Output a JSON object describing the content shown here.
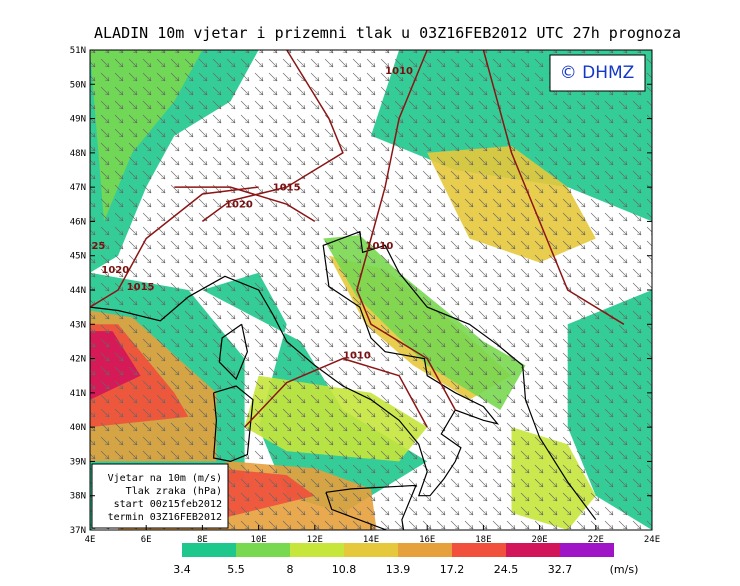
{
  "header": {
    "title": "ALADIN 10m vjetar i prizemni tlak u 03Z16FEB2012 UTC 27h prognoza"
  },
  "logo": "© DHMZ",
  "lat_labels": [
    "51N",
    "50N",
    "49N",
    "48N",
    "47N",
    "46N",
    "45N",
    "44N",
    "43N",
    "42N",
    "41N",
    "40N",
    "39N",
    "38N",
    "37N"
  ],
  "lon_labels": [
    "4E",
    "6E",
    "8E",
    "10E",
    "12E",
    "14E",
    "16E",
    "18E",
    "20E",
    "22E",
    "24E"
  ],
  "isobars": [
    "1010",
    "1015",
    "1020",
    "1010",
    "1010",
    "25",
    "1020",
    "1015"
  ],
  "info_box": [
    "Vjetar na 10m (m/s)",
    "Tlak zraka (hPa)",
    "start 00z15feb2012",
    "termin 03Z16FEB2012"
  ],
  "color_scale": {
    "labels": [
      "3.4",
      "5.5",
      "8",
      "10.8",
      "13.9",
      "17.2",
      "24.5",
      "32.7"
    ],
    "unit": "(m/s)",
    "colors": [
      "#1ec88c",
      "#78d850",
      "#c6e63c",
      "#e6c83c",
      "#e6a03c",
      "#f0503c",
      "#d2145a",
      "#a014c8"
    ]
  }
}
